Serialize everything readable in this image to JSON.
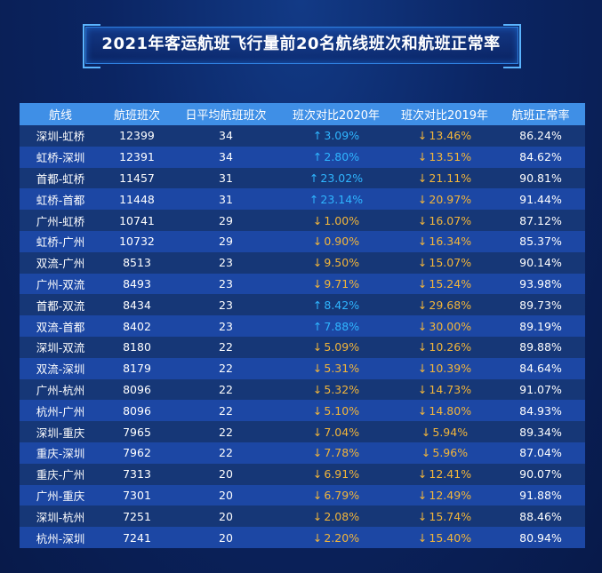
{
  "chart_data": {
    "type": "table",
    "title": "2021年客运航班飞行量前20名航线班次和航班正常率",
    "columns": [
      "航线",
      "航班班次",
      "日平均航班班次",
      "班次对比2020年",
      "班次对比2019年",
      "航班正常率"
    ],
    "rows": [
      {
        "route": "深圳-虹桥",
        "flights": "12399",
        "daily": "34",
        "vs2020": "3.09%",
        "vs2020_dir": "up",
        "vs2019": "13.46%",
        "vs2019_dir": "down",
        "ontime": "86.24%"
      },
      {
        "route": "虹桥-深圳",
        "flights": "12391",
        "daily": "34",
        "vs2020": "2.80%",
        "vs2020_dir": "up",
        "vs2019": "13.51%",
        "vs2019_dir": "down",
        "ontime": "84.62%"
      },
      {
        "route": "首都-虹桥",
        "flights": "11457",
        "daily": "31",
        "vs2020": "23.02%",
        "vs2020_dir": "up",
        "vs2019": "21.11%",
        "vs2019_dir": "down",
        "ontime": "90.81%"
      },
      {
        "route": "虹桥-首都",
        "flights": "11448",
        "daily": "31",
        "vs2020": "23.14%",
        "vs2020_dir": "up",
        "vs2019": "20.97%",
        "vs2019_dir": "down",
        "ontime": "91.44%"
      },
      {
        "route": "广州-虹桥",
        "flights": "10741",
        "daily": "29",
        "vs2020": "1.00%",
        "vs2020_dir": "down",
        "vs2019": "16.07%",
        "vs2019_dir": "down",
        "ontime": "87.12%"
      },
      {
        "route": "虹桥-广州",
        "flights": "10732",
        "daily": "29",
        "vs2020": "0.90%",
        "vs2020_dir": "down",
        "vs2019": "16.34%",
        "vs2019_dir": "down",
        "ontime": "85.37%"
      },
      {
        "route": "双流-广州",
        "flights": "8513",
        "daily": "23",
        "vs2020": "9.50%",
        "vs2020_dir": "down",
        "vs2019": "15.07%",
        "vs2019_dir": "down",
        "ontime": "90.14%"
      },
      {
        "route": "广州-双流",
        "flights": "8493",
        "daily": "23",
        "vs2020": "9.71%",
        "vs2020_dir": "down",
        "vs2019": "15.24%",
        "vs2019_dir": "down",
        "ontime": "93.98%"
      },
      {
        "route": "首都-双流",
        "flights": "8434",
        "daily": "23",
        "vs2020": "8.42%",
        "vs2020_dir": "up",
        "vs2019": "29.68%",
        "vs2019_dir": "down",
        "ontime": "89.73%"
      },
      {
        "route": "双流-首都",
        "flights": "8402",
        "daily": "23",
        "vs2020": "7.88%",
        "vs2020_dir": "up",
        "vs2019": "30.00%",
        "vs2019_dir": "down",
        "ontime": "89.19%"
      },
      {
        "route": "深圳-双流",
        "flights": "8180",
        "daily": "22",
        "vs2020": "5.09%",
        "vs2020_dir": "down",
        "vs2019": "10.26%",
        "vs2019_dir": "down",
        "ontime": "89.88%"
      },
      {
        "route": "双流-深圳",
        "flights": "8179",
        "daily": "22",
        "vs2020": "5.31%",
        "vs2020_dir": "down",
        "vs2019": "10.39%",
        "vs2019_dir": "down",
        "ontime": "84.64%"
      },
      {
        "route": "广州-杭州",
        "flights": "8096",
        "daily": "22",
        "vs2020": "5.32%",
        "vs2020_dir": "down",
        "vs2019": "14.73%",
        "vs2019_dir": "down",
        "ontime": "91.07%"
      },
      {
        "route": "杭州-广州",
        "flights": "8096",
        "daily": "22",
        "vs2020": "5.10%",
        "vs2020_dir": "down",
        "vs2019": "14.80%",
        "vs2019_dir": "down",
        "ontime": "84.93%"
      },
      {
        "route": "深圳-重庆",
        "flights": "7965",
        "daily": "22",
        "vs2020": "7.04%",
        "vs2020_dir": "down",
        "vs2019": "5.94%",
        "vs2019_dir": "down",
        "ontime": "89.34%"
      },
      {
        "route": "重庆-深圳",
        "flights": "7962",
        "daily": "22",
        "vs2020": "7.78%",
        "vs2020_dir": "down",
        "vs2019": "5.96%",
        "vs2019_dir": "down",
        "ontime": "87.04%"
      },
      {
        "route": "重庆-广州",
        "flights": "7313",
        "daily": "20",
        "vs2020": "6.91%",
        "vs2020_dir": "down",
        "vs2019": "12.41%",
        "vs2019_dir": "down",
        "ontime": "90.07%"
      },
      {
        "route": "广州-重庆",
        "flights": "7301",
        "daily": "20",
        "vs2020": "6.79%",
        "vs2020_dir": "down",
        "vs2019": "12.49%",
        "vs2019_dir": "down",
        "ontime": "91.88%"
      },
      {
        "route": "深圳-杭州",
        "flights": "7251",
        "daily": "20",
        "vs2020": "2.08%",
        "vs2020_dir": "down",
        "vs2019": "15.74%",
        "vs2019_dir": "down",
        "ontime": "88.46%"
      },
      {
        "route": "杭州-深圳",
        "flights": "7241",
        "daily": "20",
        "vs2020": "2.20%",
        "vs2020_dir": "down",
        "vs2019": "15.40%",
        "vs2019_dir": "down",
        "ontime": "80.94%"
      }
    ]
  },
  "arrows": {
    "up": "↑",
    "down": "↓"
  },
  "colors": {
    "up": "#2fb5ff",
    "down": "#f2b53a",
    "header": "#3f8fe6"
  }
}
